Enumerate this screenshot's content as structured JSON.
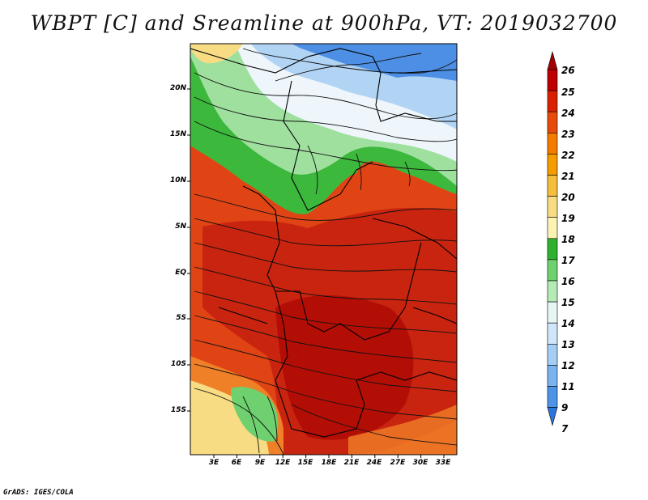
{
  "title": "WBPT [C] and Sreamline at 900hPa, VT: 2019032700",
  "credit": "GrADS: IGES/COLA",
  "lat_labels": [
    "20N",
    "15N",
    "10N",
    "5N",
    "EQ",
    "5S",
    "10S",
    "15S"
  ],
  "lon_labels": [
    "3E",
    "6E",
    "9E",
    "12E",
    "15E",
    "18E",
    "21E",
    "24E",
    "27E",
    "30E",
    "33E"
  ],
  "colorbar": {
    "levels": [
      "26",
      "25",
      "24",
      "23",
      "22",
      "21",
      "20",
      "19",
      "18",
      "17",
      "16",
      "15",
      "14",
      "13",
      "12",
      "11",
      "9",
      "7"
    ],
    "colors": [
      "#a50000",
      "#c00000",
      "#d92000",
      "#e84a0a",
      "#f57a00",
      "#f59c00",
      "#f6be3c",
      "#f8dc84",
      "#fbf2b4",
      "#2fb02f",
      "#6ed06e",
      "#b4eab4",
      "#e6f7f3",
      "#cfe6fb",
      "#a6cef5",
      "#7bb3ef",
      "#4d94e6",
      "#2c75dc"
    ]
  },
  "map_colors": {
    "hot": "#c41e0e",
    "warm": "#e24a14",
    "orange": "#f08028",
    "yellow": "#f8dc84",
    "green": "#3cb83c",
    "lightgreen": "#9fe09f",
    "white": "#eef6fb",
    "lightblue": "#b2d4f4",
    "blue": "#4d8fe4"
  }
}
